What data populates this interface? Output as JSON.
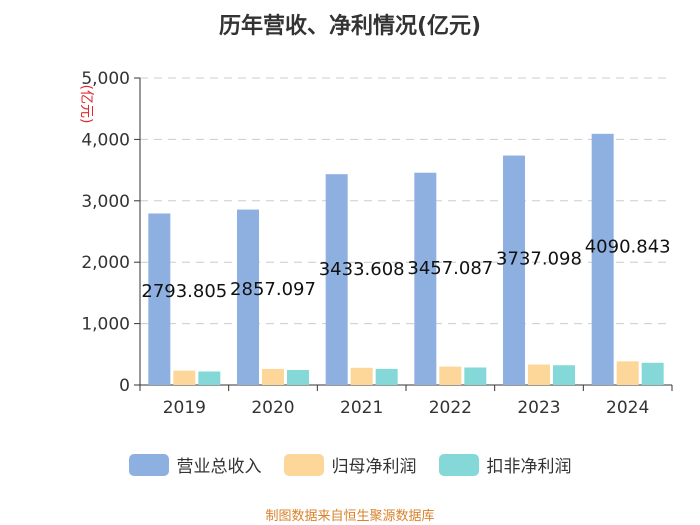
{
  "chart_data": {
    "type": "bar",
    "title": "历年营收、净利情况(亿元)",
    "ylabel": "(亿元)",
    "xlabel": "",
    "ylim": [
      0,
      5000
    ],
    "yticks": [
      0,
      1000,
      2000,
      3000,
      4000,
      5000
    ],
    "ytick_labels": [
      "0",
      "1,000",
      "2,000",
      "3,000",
      "4,000",
      "5,000"
    ],
    "categories": [
      "2019",
      "2020",
      "2021",
      "2022",
      "2023",
      "2024"
    ],
    "series": [
      {
        "name": "营业总收入",
        "color": "#8eb0e0",
        "values": [
          2793.805,
          2857.097,
          3433.608,
          3457.087,
          3737.098,
          4090.843
        ],
        "labels": [
          "2793.805",
          "2857.097",
          "3433.608",
          "3457.087",
          "3737.098",
          "4090.843"
        ]
      },
      {
        "name": "归母净利润",
        "color": "#fdd69a",
        "values": [
          234,
          262,
          280,
          300,
          333,
          386
        ]
      },
      {
        "name": "扣非净利润",
        "color": "#84d8d8",
        "values": [
          220,
          245,
          262,
          285,
          322,
          362
        ]
      }
    ],
    "grid": true,
    "legend": "bottom"
  },
  "footer": {
    "source": "制图数据来自恒生聚源数据库"
  }
}
